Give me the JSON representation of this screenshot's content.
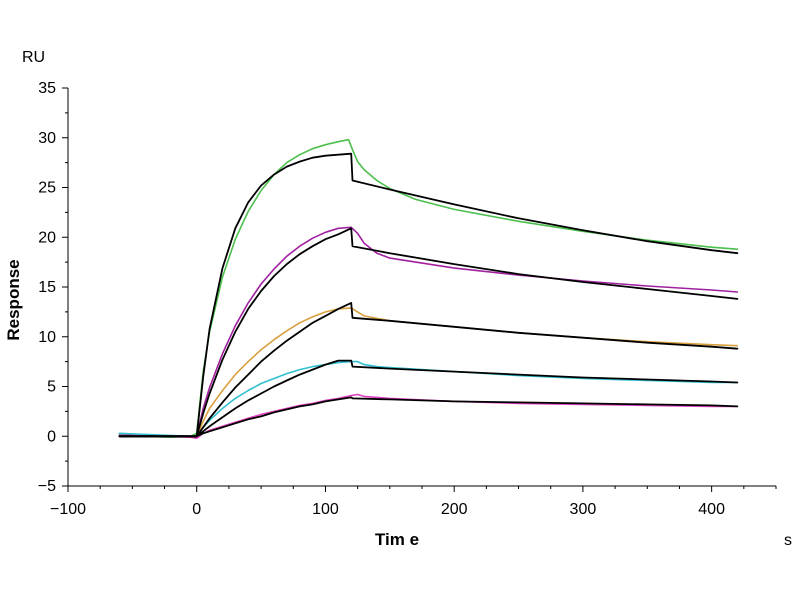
{
  "chart_data": {
    "type": "line",
    "y_unit": "RU",
    "xlabel": "Tim e",
    "x_unit": "s",
    "ylabel": "Response",
    "xlim": [
      -100,
      450
    ],
    "ylim": [
      -5,
      35
    ],
    "x_ticks": [
      -100,
      0,
      100,
      200,
      300,
      400
    ],
    "x_tick_labels": [
      "−100",
      "0",
      "100",
      "200",
      "300",
      "400"
    ],
    "y_ticks": [
      -5,
      0,
      5,
      10,
      15,
      20,
      25,
      30,
      35
    ],
    "y_tick_labels": [
      "−5",
      "0",
      "5",
      "10",
      "15",
      "20",
      "25",
      "30",
      "35"
    ],
    "grid": false,
    "series": [
      {
        "color": "#4cbf4c",
        "kind": "measured",
        "x": [
          -60,
          -40,
          -20,
          -5,
          0,
          5,
          10,
          20,
          30,
          40,
          50,
          60,
          70,
          80,
          90,
          100,
          110,
          118,
          121,
          125,
          130,
          140,
          150,
          170,
          200,
          250,
          300,
          350,
          400,
          420
        ],
        "y": [
          0.2,
          0,
          -0.1,
          0,
          0.3,
          6.5,
          10.5,
          16,
          19.8,
          22.6,
          24.7,
          26.3,
          27.5,
          28.3,
          28.9,
          29.3,
          29.6,
          29.8,
          28.8,
          27.6,
          26.8,
          25.7,
          24.9,
          23.8,
          22.8,
          21.6,
          20.6,
          19.7,
          19.0,
          18.8
        ]
      },
      {
        "color": "#000000",
        "kind": "fit",
        "x": [
          -60,
          -5,
          0,
          5,
          10,
          20,
          30,
          40,
          50,
          60,
          70,
          80,
          90,
          100,
          110,
          120,
          121,
          150,
          200,
          250,
          300,
          350,
          400,
          420
        ],
        "y": [
          0,
          0,
          0,
          6,
          10.8,
          16.9,
          20.9,
          23.5,
          25.2,
          26.3,
          27.1,
          27.6,
          28,
          28.2,
          28.3,
          28.4,
          25.7,
          24.8,
          23.3,
          21.9,
          20.7,
          19.6,
          18.7,
          18.4
        ]
      },
      {
        "color": "#a020a0",
        "kind": "measured",
        "x": [
          -60,
          -5,
          0,
          5,
          10,
          20,
          30,
          40,
          50,
          60,
          70,
          80,
          90,
          100,
          110,
          120,
          125,
          130,
          140,
          150,
          200,
          250,
          300,
          350,
          400,
          420
        ],
        "y": [
          0.1,
          0,
          0,
          2.8,
          4.9,
          8.3,
          11.1,
          13.4,
          15.3,
          16.8,
          18.1,
          19.1,
          19.9,
          20.5,
          20.9,
          21,
          20.4,
          19.4,
          18.4,
          17.9,
          16.9,
          16.2,
          15.6,
          15.1,
          14.7,
          14.5
        ]
      },
      {
        "color": "#000000",
        "kind": "fit",
        "x": [
          -60,
          -5,
          0,
          5,
          10,
          20,
          30,
          40,
          50,
          60,
          70,
          80,
          90,
          100,
          110,
          120,
          121,
          150,
          200,
          250,
          300,
          350,
          400,
          420
        ],
        "y": [
          0,
          0,
          0,
          2.3,
          4.3,
          7.7,
          10.5,
          12.8,
          14.6,
          16.1,
          17.3,
          18.3,
          19.1,
          19.8,
          20.3,
          20.9,
          19.1,
          18.4,
          17.3,
          16.3,
          15.5,
          14.8,
          14.1,
          13.8
        ]
      },
      {
        "color": "#d9a040",
        "kind": "measured",
        "x": [
          -60,
          -5,
          0,
          5,
          10,
          20,
          30,
          40,
          50,
          60,
          70,
          80,
          90,
          100,
          110,
          120,
          125,
          130,
          150,
          200,
          250,
          300,
          350,
          400,
          420
        ],
        "y": [
          0,
          0,
          0,
          1.5,
          2.8,
          4.6,
          6.2,
          7.5,
          8.7,
          9.7,
          10.6,
          11.4,
          12,
          12.5,
          12.8,
          12.9,
          12.5,
          12.1,
          11.6,
          11,
          10.4,
          9.9,
          9.5,
          9.2,
          9.1
        ]
      },
      {
        "color": "#000000",
        "kind": "fit",
        "x": [
          -60,
          -5,
          0,
          5,
          10,
          20,
          30,
          40,
          50,
          60,
          70,
          80,
          90,
          100,
          110,
          120,
          121,
          150,
          200,
          250,
          300,
          350,
          400,
          420
        ],
        "y": [
          0,
          0,
          0,
          0.9,
          1.8,
          3.4,
          4.9,
          6.2,
          7.5,
          8.6,
          9.6,
          10.5,
          11.4,
          12.1,
          12.8,
          13.4,
          11.9,
          11.6,
          11,
          10.4,
          9.9,
          9.4,
          9,
          8.8
        ]
      },
      {
        "color": "#30c0d0",
        "kind": "measured",
        "x": [
          -60,
          -5,
          0,
          5,
          10,
          20,
          30,
          40,
          50,
          60,
          70,
          80,
          90,
          100,
          110,
          120,
          125,
          130,
          140,
          150,
          200,
          250,
          300,
          350,
          400,
          420
        ],
        "y": [
          0.3,
          0,
          0,
          0.9,
          1.6,
          2.8,
          3.8,
          4.6,
          5.3,
          5.8,
          6.3,
          6.7,
          7,
          7.2,
          7.4,
          7.5,
          7.5,
          7.2,
          7,
          6.9,
          6.5,
          6.1,
          5.8,
          5.6,
          5.4,
          5.4
        ]
      },
      {
        "color": "#000000",
        "kind": "fit",
        "x": [
          -60,
          -5,
          0,
          5,
          10,
          20,
          30,
          40,
          50,
          60,
          70,
          80,
          90,
          100,
          110,
          120,
          121,
          150,
          200,
          250,
          300,
          350,
          400,
          420
        ],
        "y": [
          0,
          0,
          0,
          0.5,
          1,
          1.9,
          2.8,
          3.6,
          4.3,
          5,
          5.6,
          6.2,
          6.7,
          7.2,
          7.6,
          7.6,
          7,
          6.8,
          6.5,
          6.2,
          5.9,
          5.7,
          5.5,
          5.4
        ]
      },
      {
        "color": "#e040c0",
        "kind": "measured",
        "x": [
          -60,
          -5,
          0,
          5,
          10,
          20,
          30,
          40,
          50,
          60,
          70,
          80,
          90,
          100,
          110,
          120,
          125,
          130,
          150,
          200,
          250,
          300,
          350,
          400,
          420
        ],
        "y": [
          0.1,
          -0.1,
          -0.2,
          0.3,
          0.6,
          1,
          1.4,
          1.8,
          2.2,
          2.5,
          2.8,
          3.1,
          3.3,
          3.6,
          3.8,
          4.1,
          4.2,
          4,
          3.8,
          3.5,
          3.3,
          3.2,
          3.1,
          3,
          3
        ]
      },
      {
        "color": "#000000",
        "kind": "fit",
        "x": [
          -60,
          -5,
          0,
          5,
          10,
          20,
          30,
          40,
          50,
          60,
          70,
          80,
          90,
          100,
          110,
          120,
          121,
          150,
          200,
          250,
          300,
          350,
          400,
          420
        ],
        "y": [
          0,
          0,
          0,
          0.3,
          0.5,
          0.9,
          1.3,
          1.7,
          2,
          2.4,
          2.7,
          3,
          3.2,
          3.5,
          3.7,
          3.9,
          3.8,
          3.7,
          3.5,
          3.4,
          3.3,
          3.2,
          3.1,
          3
        ]
      }
    ]
  }
}
